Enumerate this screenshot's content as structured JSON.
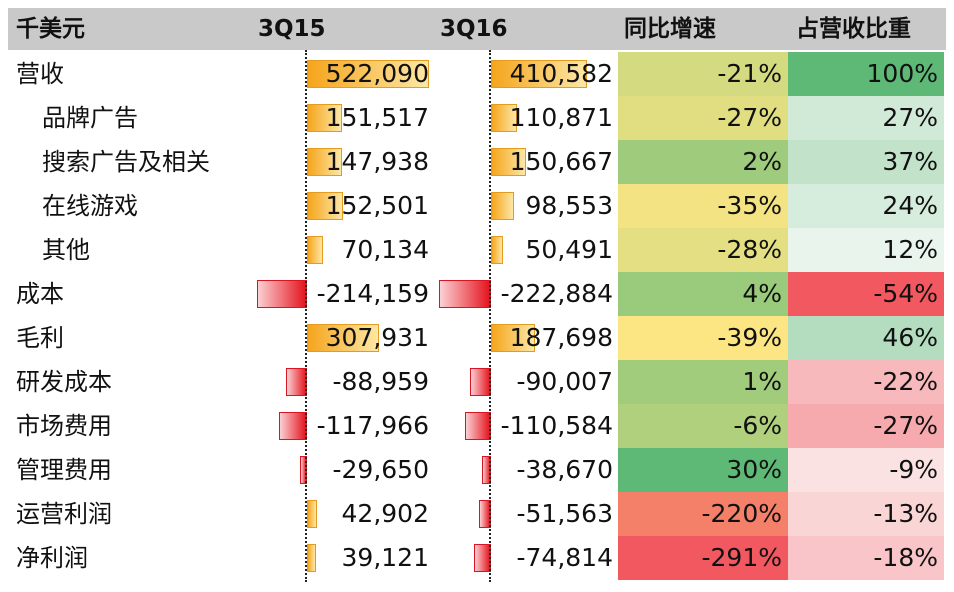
{
  "chart_data": {
    "type": "table",
    "columns": [
      "千美元",
      "3Q15",
      "3Q16",
      "同比增速",
      "占营收比重"
    ],
    "rows": [
      {
        "label": "营收",
        "indent": false,
        "q15": 522090,
        "q15_text": "522,090",
        "q16": 410582,
        "q16_text": "410,582",
        "yoy": -21,
        "yoy_text": "-21%",
        "share": 100,
        "share_text": "100%"
      },
      {
        "label": "品牌广告",
        "indent": true,
        "q15": 151517,
        "q15_text": "151,517",
        "q16": 110871,
        "q16_text": "110,871",
        "yoy": -27,
        "yoy_text": "-27%",
        "share": 27,
        "share_text": "27%"
      },
      {
        "label": "搜索广告及相关",
        "indent": true,
        "q15": 147938,
        "q15_text": "147,938",
        "q16": 150667,
        "q16_text": "150,667",
        "yoy": 2,
        "yoy_text": "2%",
        "share": 37,
        "share_text": "37%"
      },
      {
        "label": "在线游戏",
        "indent": true,
        "q15": 152501,
        "q15_text": "152,501",
        "q16": 98553,
        "q16_text": "98,553",
        "yoy": -35,
        "yoy_text": "-35%",
        "share": 24,
        "share_text": "24%"
      },
      {
        "label": "其他",
        "indent": true,
        "q15": 70134,
        "q15_text": "70,134",
        "q16": 50491,
        "q16_text": "50,491",
        "yoy": -28,
        "yoy_text": "-28%",
        "share": 12,
        "share_text": "12%"
      },
      {
        "label": "成本",
        "indent": false,
        "q15": -214159,
        "q15_text": "-214,159",
        "q16": -222884,
        "q16_text": "-222,884",
        "yoy": 4,
        "yoy_text": "4%",
        "share": -54,
        "share_text": "-54%"
      },
      {
        "label": "毛利",
        "indent": false,
        "q15": 307931,
        "q15_text": "307,931",
        "q16": 187698,
        "q16_text": "187,698",
        "yoy": -39,
        "yoy_text": "-39%",
        "share": 46,
        "share_text": "46%"
      },
      {
        "label": "研发成本",
        "indent": false,
        "q15": -88959,
        "q15_text": "-88,959",
        "q16": -90007,
        "q16_text": "-90,007",
        "yoy": 1,
        "yoy_text": "1%",
        "share": -22,
        "share_text": "-22%"
      },
      {
        "label": "市场费用",
        "indent": false,
        "q15": -117966,
        "q15_text": "-117,966",
        "q16": -110584,
        "q16_text": "-110,584",
        "yoy": -6,
        "yoy_text": "-6%",
        "share": -27,
        "share_text": "-27%"
      },
      {
        "label": "管理费用",
        "indent": false,
        "q15": -29650,
        "q15_text": "-29,650",
        "q16": -38670,
        "q16_text": "-38,670",
        "yoy": 30,
        "yoy_text": "30%",
        "share": -9,
        "share_text": "-9%"
      },
      {
        "label": "运营利润",
        "indent": false,
        "q15": 42902,
        "q15_text": "42,902",
        "q16": -51563,
        "q16_text": "-51,563",
        "yoy": -220,
        "yoy_text": "-220%",
        "share": -13,
        "share_text": "-13%"
      },
      {
        "label": "净利润",
        "indent": false,
        "q15": 39121,
        "q15_text": "39,121",
        "q16": -74814,
        "q16_text": "-74,814",
        "yoy": -291,
        "yoy_text": "-291%",
        "share": -18,
        "share_text": "-18%"
      }
    ]
  }
}
